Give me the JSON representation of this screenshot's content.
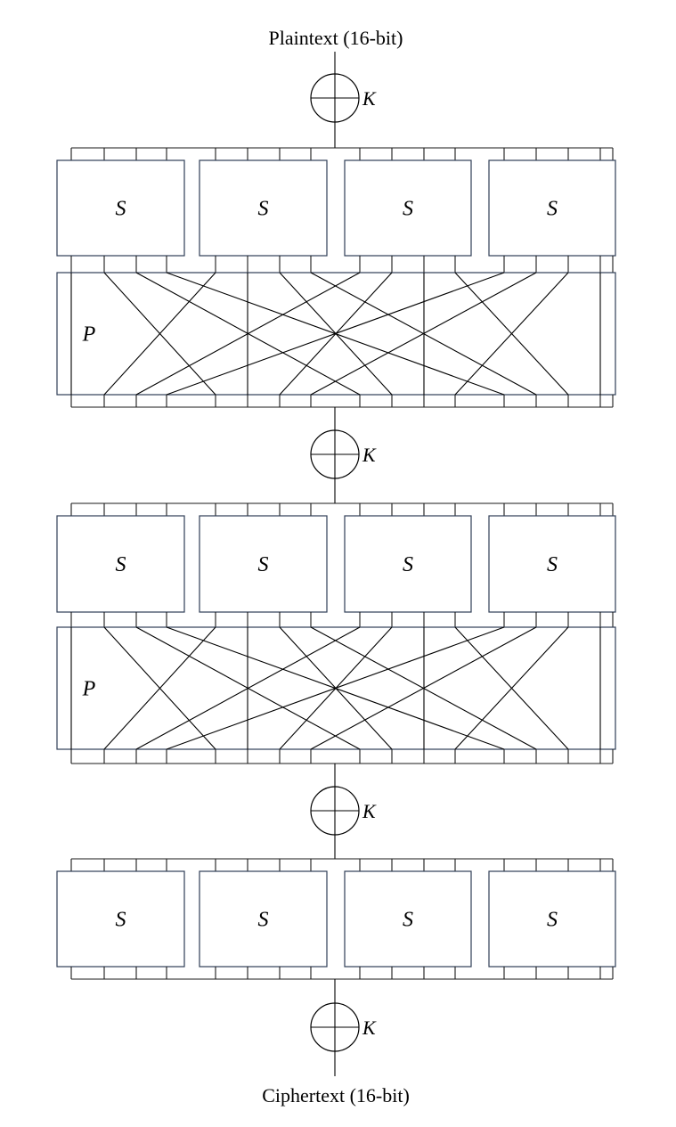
{
  "diagram": {
    "input_label": "Plaintext (16-bit)",
    "output_label": "Ciphertext (16-bit)",
    "key_label": "K",
    "sbox_label": "S",
    "pbox_label": "P",
    "rounds": [
      {
        "xor": true,
        "sboxes": 4,
        "permutation": true
      },
      {
        "xor": true,
        "sboxes": 4,
        "permutation": true
      },
      {
        "xor": true,
        "sboxes": 4,
        "permutation": false
      }
    ],
    "final_xor": true,
    "bits": 16,
    "permutation_map": [
      0,
      4,
      8,
      12,
      1,
      5,
      9,
      13,
      2,
      6,
      10,
      14,
      3,
      7,
      11,
      15
    ]
  }
}
